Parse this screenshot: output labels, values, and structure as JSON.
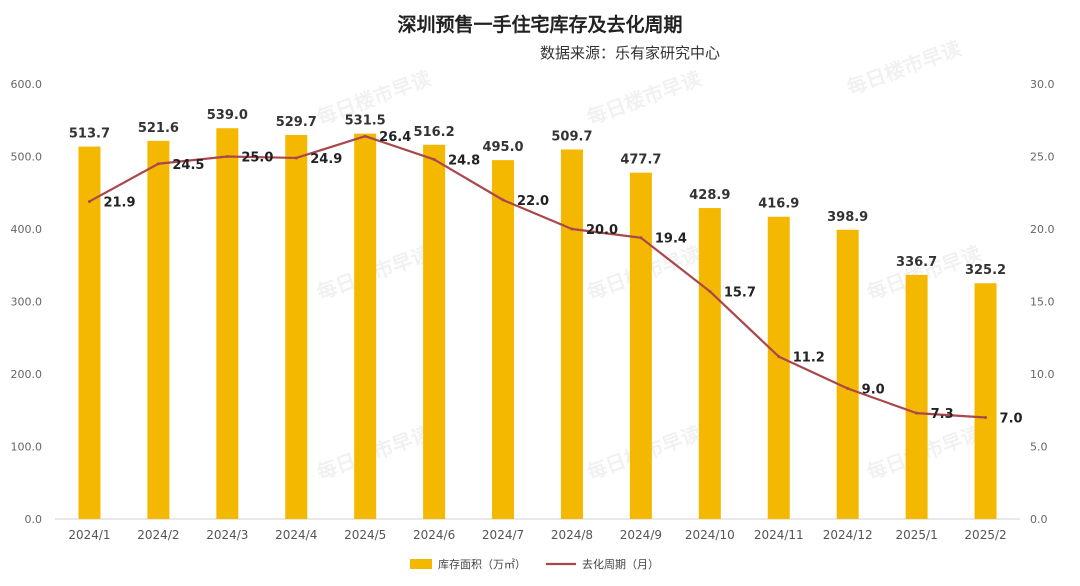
{
  "title": "深圳预售一手住宅库存及去化周期",
  "subtitle": "数据来源：乐有家研究中心",
  "watermark": "每日楼市早读",
  "chart_data": {
    "type": "bar",
    "categories": [
      "2024/1",
      "2024/2",
      "2024/3",
      "2024/4",
      "2024/5",
      "2024/6",
      "2024/7",
      "2024/8",
      "2024/9",
      "2024/10",
      "2024/11",
      "2024/12",
      "2025/1",
      "2025/2"
    ],
    "series": [
      {
        "name": "库存面积（万㎡）",
        "type": "bar",
        "axis": "left",
        "color": "#F5B800",
        "values": [
          513.7,
          521.6,
          539.0,
          529.7,
          531.5,
          516.2,
          495.0,
          509.7,
          477.7,
          428.9,
          416.9,
          398.9,
          336.7,
          325.2
        ]
      },
      {
        "name": "去化周期（月）",
        "type": "line",
        "axis": "right",
        "color": "#A9474C",
        "values": [
          21.9,
          24.5,
          25.0,
          24.9,
          26.4,
          24.8,
          22.0,
          20.0,
          19.4,
          15.7,
          11.2,
          9.0,
          7.3,
          7.0
        ]
      }
    ],
    "y_left": {
      "min": 0,
      "max": 600,
      "ticks": [
        "0.0",
        "100.0",
        "200.0",
        "300.0",
        "400.0",
        "500.0",
        "600.0"
      ]
    },
    "y_right": {
      "min": 0,
      "max": 30,
      "ticks": [
        "0.0",
        "5.0",
        "10.0",
        "15.0",
        "20.0",
        "25.0",
        "30.0"
      ]
    },
    "grid": false,
    "legend_position": "bottom"
  }
}
